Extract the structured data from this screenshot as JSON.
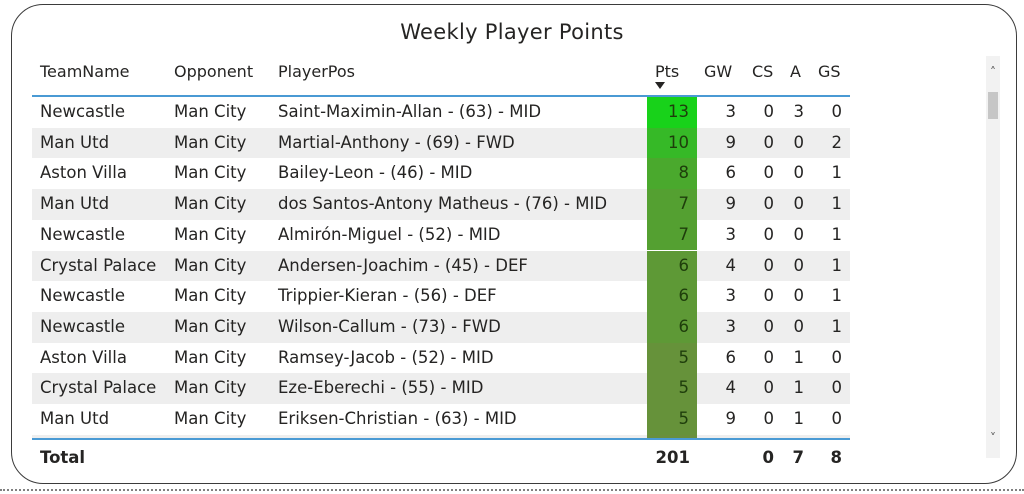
{
  "title": "Weekly Player Points",
  "columns": {
    "team": "TeamName",
    "opponent": "Opponent",
    "player": "PlayerPos",
    "pts": "Pts",
    "gw": "GW",
    "cs": "CS",
    "a": "A",
    "gs": "GS"
  },
  "rows": [
    {
      "team": "Newcastle",
      "opponent": "Man City",
      "player": "Saint-Maximin-Allan - (63) - MID",
      "pts": "13",
      "gw": "3",
      "cs": "0",
      "a": "3",
      "gs": "0",
      "color": "#18d21a"
    },
    {
      "team": "Man Utd",
      "opponent": "Man City",
      "player": "Martial-Anthony - (69) - FWD",
      "pts": "10",
      "gw": "9",
      "cs": "0",
      "a": "0",
      "gs": "2",
      "color": "#36b927"
    },
    {
      "team": "Aston Villa",
      "opponent": "Man City",
      "player": "Bailey-Leon - (46) - MID",
      "pts": "8",
      "gw": "6",
      "cs": "0",
      "a": "0",
      "gs": "1",
      "color": "#4aa92d"
    },
    {
      "team": "Man Utd",
      "opponent": "Man City",
      "player": "dos Santos-Antony Matheus - (76) - MID",
      "pts": "7",
      "gw": "9",
      "cs": "0",
      "a": "0",
      "gs": "1",
      "color": "#54a031"
    },
    {
      "team": "Newcastle",
      "opponent": "Man City",
      "player": "Almirón-Miguel - (52) - MID",
      "pts": "7",
      "gw": "3",
      "cs": "0",
      "a": "0",
      "gs": "1",
      "color": "#54a031"
    },
    {
      "team": "Crystal Palace",
      "opponent": "Man City",
      "player": "Andersen-Joachim - (45) - DEF",
      "pts": "6",
      "gw": "4",
      "cs": "0",
      "a": "0",
      "gs": "1",
      "color": "#5e9936"
    },
    {
      "team": "Newcastle",
      "opponent": "Man City",
      "player": "Trippier-Kieran - (56) - DEF",
      "pts": "6",
      "gw": "3",
      "cs": "0",
      "a": "0",
      "gs": "1",
      "color": "#5e9936"
    },
    {
      "team": "Newcastle",
      "opponent": "Man City",
      "player": "Wilson-Callum - (73) - FWD",
      "pts": "6",
      "gw": "3",
      "cs": "0",
      "a": "0",
      "gs": "1",
      "color": "#5e9936"
    },
    {
      "team": "Aston Villa",
      "opponent": "Man City",
      "player": "Ramsey-Jacob - (52) - MID",
      "pts": "5",
      "gw": "6",
      "cs": "0",
      "a": "1",
      "gs": "0",
      "color": "#66923a"
    },
    {
      "team": "Crystal Palace",
      "opponent": "Man City",
      "player": "Eze-Eberechi - (55) - MID",
      "pts": "5",
      "gw": "4",
      "cs": "0",
      "a": "1",
      "gs": "0",
      "color": "#66923a"
    },
    {
      "team": "Man Utd",
      "opponent": "Man City",
      "player": "Eriksen-Christian - (63) - MID",
      "pts": "5",
      "gw": "9",
      "cs": "0",
      "a": "1",
      "gs": "0",
      "color": "#66923a"
    },
    {
      "team": "",
      "opponent": "",
      "player": "",
      "pts": "",
      "gw": "",
      "cs": "",
      "a": "",
      "gs": "",
      "color": "#6a8f3c"
    }
  ],
  "total": {
    "label": "Total",
    "pts": "201",
    "cs": "0",
    "a": "7",
    "gs": "8"
  },
  "scrollbar": {
    "up": "˄",
    "down": "˅"
  }
}
